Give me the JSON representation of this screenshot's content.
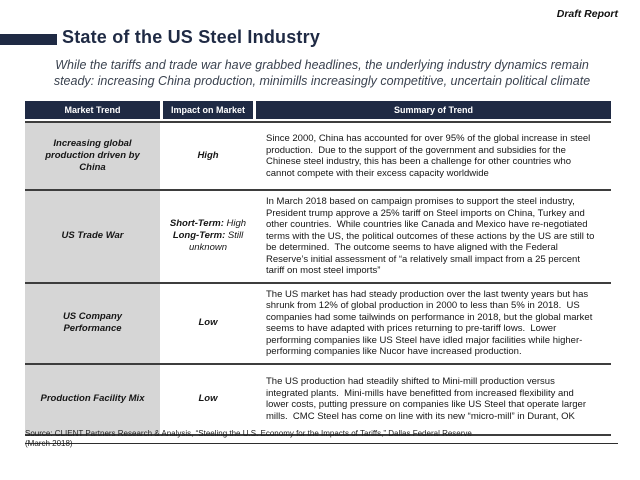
{
  "page": {
    "draft_label": "Draft Report",
    "title": "State of the US Steel Industry",
    "subtitle_line1": "While the tariffs and trade war have grabbed headlines, the underlying industry dynamics remain",
    "subtitle_line2": "steady: increasing China production, minimills increasingly competitive, uncertain political climate",
    "source_line1": "Source: CLIENT Partners Research & Analysis, “Steeling the U.S. Economy for the Impacts of Tariffs,” Dallas Federal Reserve",
    "source_line2": "(March 2018)"
  },
  "colors": {
    "navy": "#1f2a44",
    "row_label_bg": "#d6d6d6",
    "body_text": "#161616"
  },
  "table": {
    "headers": [
      "Market Trend",
      "Impact on Market",
      "Summary of Trend"
    ],
    "rows": [
      {
        "trend": "Increasing global production driven by China",
        "impact": "High",
        "summary": "Since 2000, China has accounted for over 95% of the global increase in steel production.  Due to the support of the government and subsidies for the Chinese steel industry, this has been a challenge for other countries who cannot compete with their excess capacity worldwide"
      },
      {
        "trend": "US Trade War",
        "impact_lines": [
          {
            "label": "Short-Term:",
            "value": "High"
          },
          {
            "label": "Long-Term:",
            "value": "Still unknown"
          }
        ],
        "summary": "In March 2018 based on campaign promises to support the steel industry, President trump approve a 25% tariff on Steel imports on China, Turkey and other countries.  While countries like Canada and Mexico have re-negotiated terms with the US, the political outcomes of these actions by the US are still to be determined.  The outcome seems to have aligned with the Federal Reserve’s initial assessment of “a relatively small impact from a 25 percent tariff on most steel imports”"
      },
      {
        "trend": "US Company Performance",
        "impact": "Low",
        "summary": "The US market has had steady production over the last twenty years but has shrunk from 12% of global production in 2000 to less than 5% in 2018.  US companies had some tailwinds on performance in 2018, but the global market seems to have adapted with prices returning to pre-tariff lows.  Lower performing companies like US Steel have idled major facilities while higher-performing companies like Nucor have increased production."
      },
      {
        "trend": "Production Facility Mix",
        "impact": "Low",
        "summary": "The US production had steadily shifted to Mini-mill production versus integrated plants.  Mini-mills have benefitted from increased flexibility and lower costs, putting pressure on companies like US Steel that operate larger mills.  CMC Steel has come on line with its new “micro-mill” in Durant, OK"
      }
    ]
  }
}
